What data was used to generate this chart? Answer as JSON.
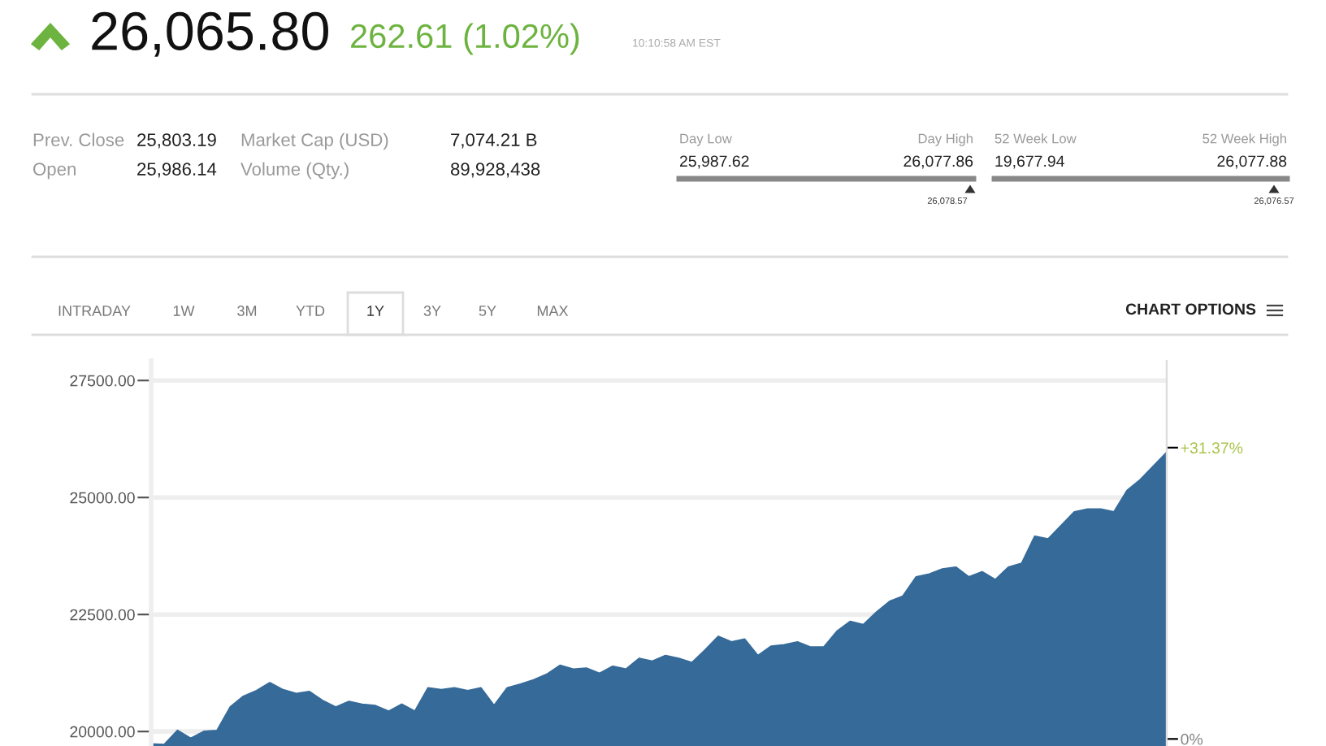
{
  "chart_data": {
    "type": "area",
    "categories": [
      null,
      null,
      null,
      null,
      null,
      null,
      null,
      null,
      null,
      null,
      null,
      null,
      null,
      null,
      null,
      null,
      null,
      null,
      null,
      null,
      null,
      null,
      null,
      null,
      null,
      null,
      null,
      null,
      null,
      null,
      null,
      null,
      null,
      null,
      null,
      null,
      null,
      null,
      null,
      null,
      null,
      null,
      null,
      null,
      null,
      null,
      null,
      null,
      null,
      null,
      null,
      null,
      null,
      null,
      null,
      null,
      null,
      null,
      null,
      null,
      null,
      null,
      null,
      null,
      null,
      null,
      null,
      null,
      null,
      null,
      null,
      null,
      null,
      null,
      null,
      null,
      null,
      null
    ],
    "series": [
      {
        "color": "#356a99",
        "values": [
          19730,
          19720,
          20020,
          19850,
          20000,
          20020,
          20520,
          20750,
          20870,
          21040,
          20890,
          20810,
          20850,
          20660,
          20520,
          20640,
          20580,
          20550,
          20430,
          20580,
          20430,
          20930,
          20890,
          20930,
          20870,
          20930,
          20550,
          20930,
          21010,
          21100,
          21220,
          21410,
          21330,
          21350,
          21240,
          21390,
          21330,
          21560,
          21500,
          21620,
          21560,
          21470,
          21740,
          22030,
          21910,
          21970,
          21620,
          21820,
          21850,
          21910,
          21800,
          21800,
          22140,
          22350,
          22280,
          22550,
          22780,
          22890,
          23300,
          23360,
          23470,
          23510,
          23300,
          23410,
          23240,
          23510,
          23590,
          24170,
          24110,
          24400,
          24690,
          24750,
          24750,
          24690,
          25150,
          25380,
          25670,
          25960
        ]
      }
    ],
    "ylim": [
      19690,
      27920
    ],
    "yticks": [
      {
        "value": 20000,
        "label": "20000.00"
      },
      {
        "value": 22500,
        "label": "22500.00"
      },
      {
        "value": 25000,
        "label": "25000.00"
      },
      {
        "value": 27500,
        "label": "27500.00"
      }
    ],
    "y2lim": [
      -0.76,
      40.72
    ],
    "y2ticks": [
      {
        "value": 0,
        "label": "0%"
      },
      {
        "value": 31.37,
        "label": "+31.37%"
      }
    ],
    "tick_labels": "y",
    "grid": "y",
    "annotations": [
      "26,065.80",
      "262.61 (1.02%)",
      "10:10:58 AM EST",
      "Prev. Close",
      "25,803.19",
      "Market Cap (USD)",
      "7,074.21 B",
      "Open",
      "25,986.14",
      "Volume (Qty.)",
      "89,928,438",
      "Day Low",
      "Day High",
      "25,987.62",
      "26,077.86",
      "26,078.57",
      "52 Week Low",
      "52 Week High",
      "19,677.94",
      "26,077.88",
      "26,076.57",
      "INTRADAY",
      "1W",
      "3M",
      "YTD",
      "1Y",
      "3Y",
      "5Y",
      "MAX",
      "CHART OPTIONS"
    ]
  }
}
